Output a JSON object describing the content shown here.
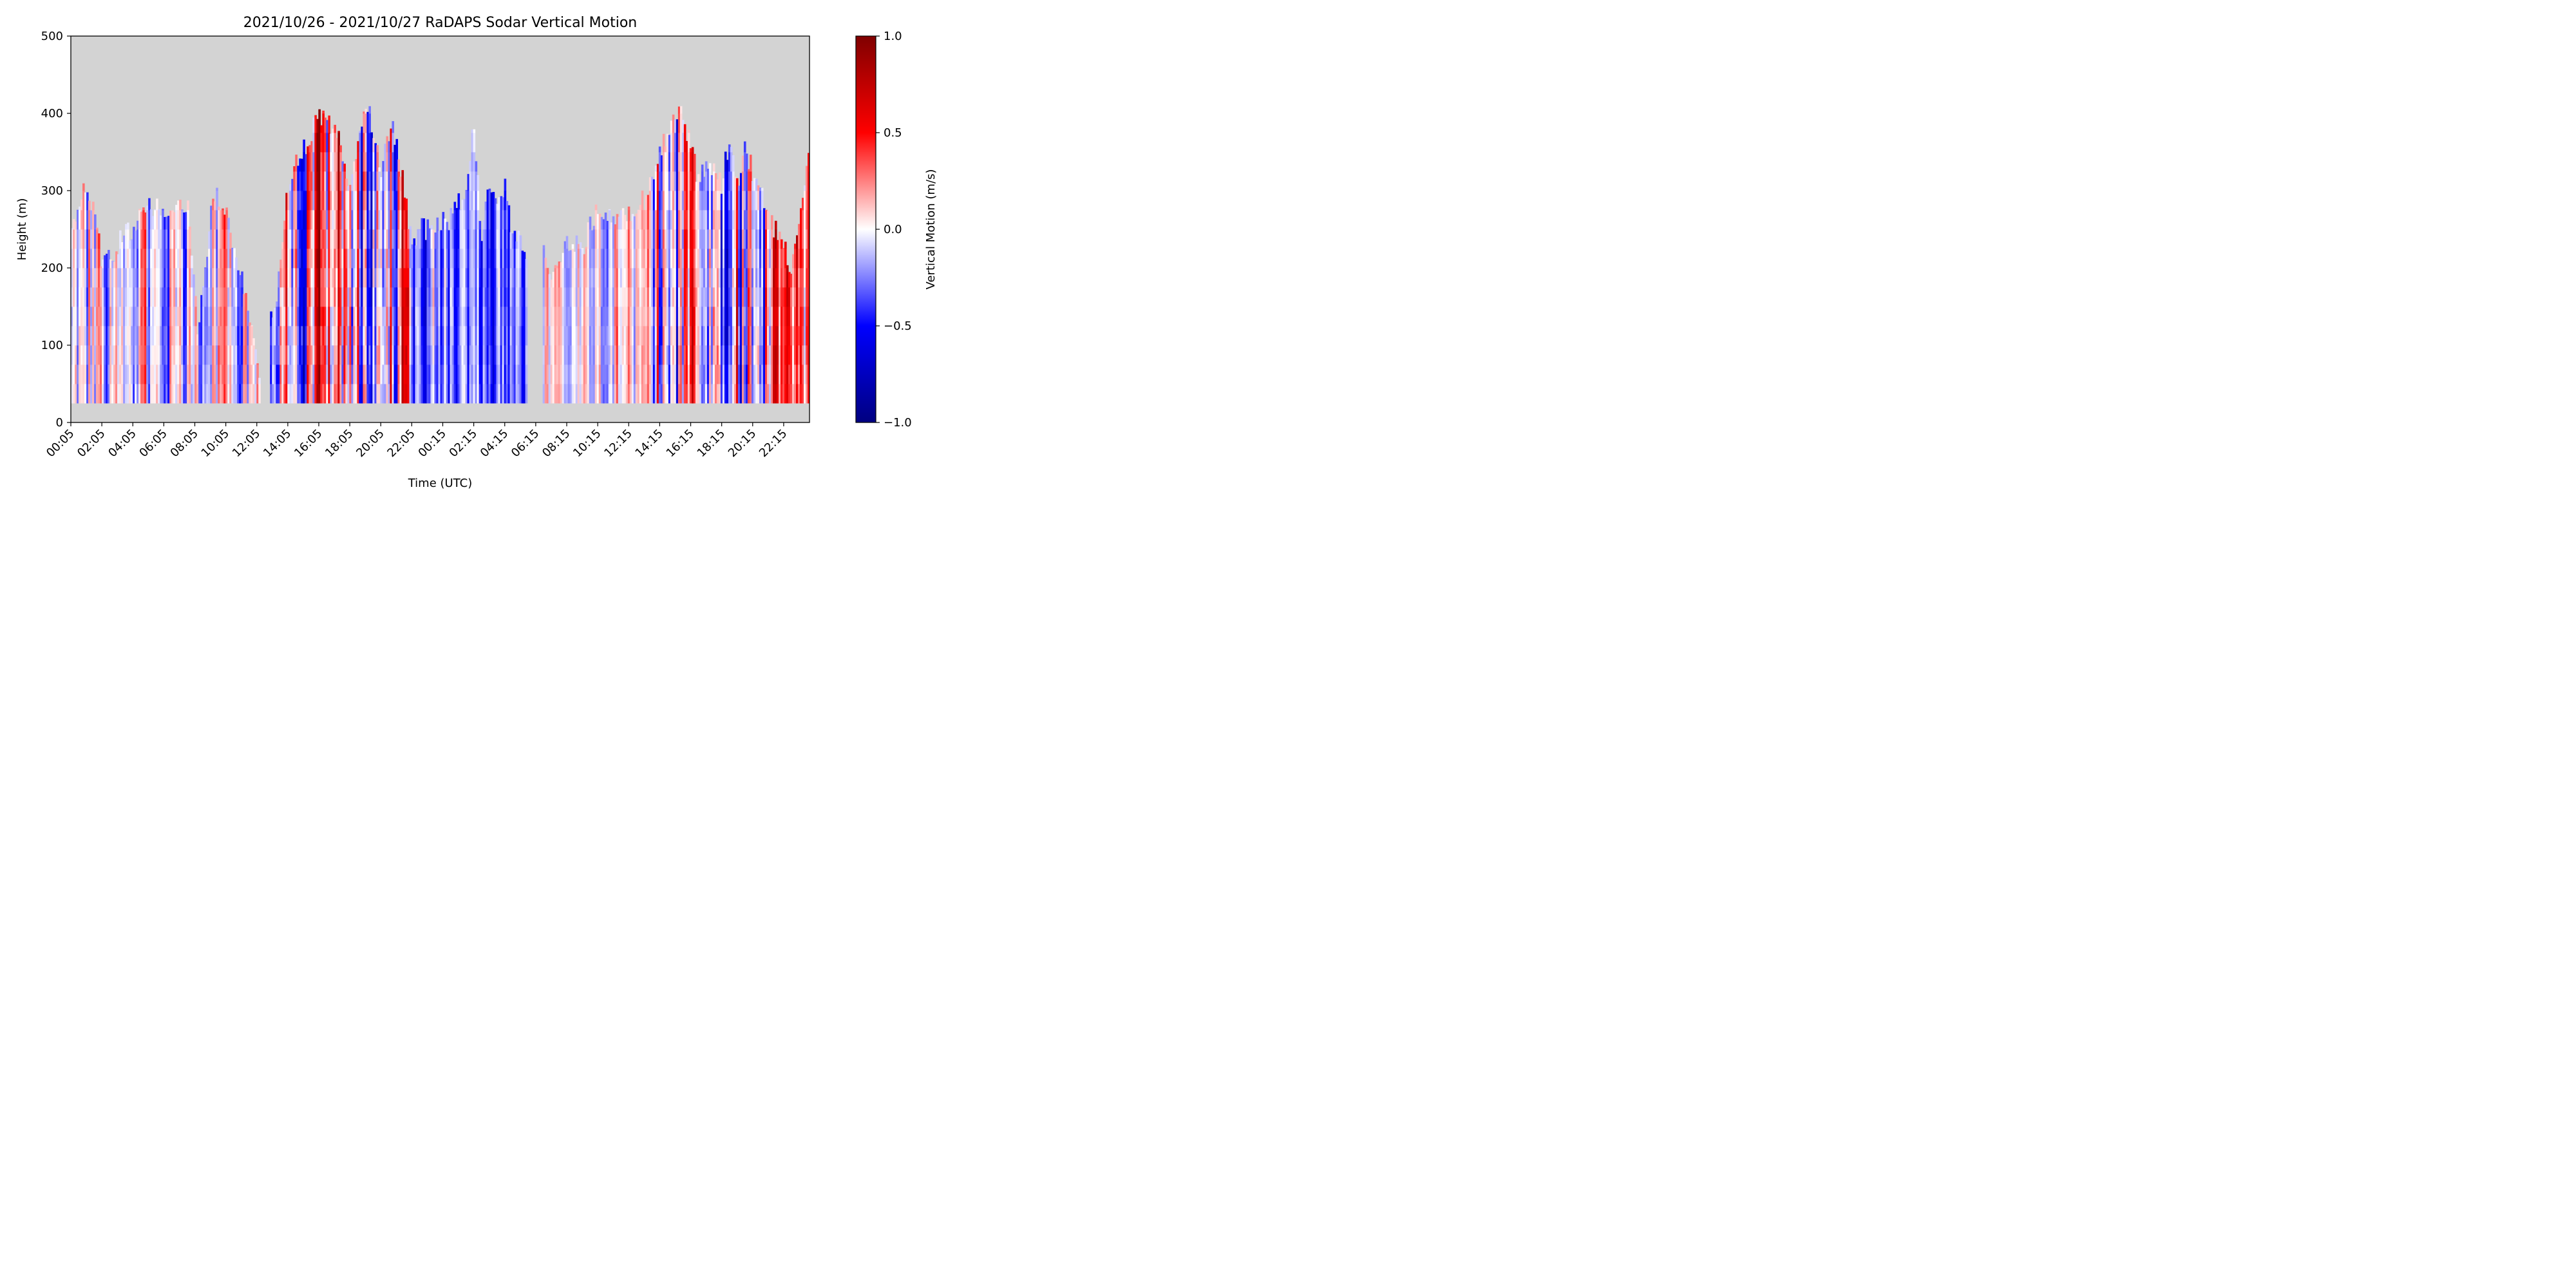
{
  "chart_data": {
    "type": "heatmap",
    "title": "2021/10/26 - 2021/10/27 RaDAPS Sodar Vertical Motion",
    "xlabel": "Time (UTC)",
    "ylabel": "Height (m)",
    "colorbar_label": "Vertical Motion (m/s)",
    "x_tick_labels": [
      "00:05",
      "02:05",
      "04:05",
      "06:05",
      "08:05",
      "10:05",
      "12:05",
      "14:05",
      "16:05",
      "18:05",
      "20:05",
      "22:05",
      "00:15",
      "02:15",
      "04:15",
      "06:15",
      "08:15",
      "10:15",
      "12:15",
      "14:15",
      "16:15",
      "18:15",
      "20:15",
      "22:15"
    ],
    "x_range_hours": [
      0,
      47.667
    ],
    "y_ticks": [
      0,
      100,
      200,
      300,
      400,
      500
    ],
    "ylim": [
      0,
      500
    ],
    "colorbar_ticks": [
      1.0,
      0.5,
      0.0,
      -0.5,
      -1.0
    ],
    "colorbar_tick_labels": [
      "1.0",
      "0.5",
      "0.0",
      "−0.5",
      "−1.0"
    ],
    "vlim": [
      -1.0,
      1.0
    ],
    "colormap": "seismic",
    "background_color": "#d3d3d3",
    "min_height_m": 25,
    "gap_periods_hours": [
      [
        12.25,
        12.9
      ],
      [
        29.5,
        30.4
      ]
    ],
    "profile_tops": [
      {
        "t": 0.0,
        "top": 265
      },
      {
        "t": 0.4,
        "top": 262
      },
      {
        "t": 0.8,
        "top": 305
      },
      {
        "t": 1.5,
        "top": 280
      },
      {
        "t": 2.0,
        "top": 200
      },
      {
        "t": 2.5,
        "top": 210
      },
      {
        "t": 3.0,
        "top": 230
      },
      {
        "t": 3.5,
        "top": 250
      },
      {
        "t": 4.2,
        "top": 240
      },
      {
        "t": 4.6,
        "top": 280
      },
      {
        "t": 5.3,
        "top": 280
      },
      {
        "t": 6.0,
        "top": 275
      },
      {
        "t": 6.8,
        "top": 280
      },
      {
        "t": 7.6,
        "top": 275
      },
      {
        "t": 8.2,
        "top": 120
      },
      {
        "t": 9.2,
        "top": 295
      },
      {
        "t": 10.0,
        "top": 275
      },
      {
        "t": 10.7,
        "top": 205
      },
      {
        "t": 11.4,
        "top": 160
      },
      {
        "t": 12.0,
        "top": 70
      },
      {
        "t": 12.25,
        "top": 70
      },
      {
        "t": 12.9,
        "top": 130
      },
      {
        "t": 13.4,
        "top": 180
      },
      {
        "t": 14.0,
        "top": 310
      },
      {
        "t": 15.0,
        "top": 355
      },
      {
        "t": 16.0,
        "top": 395
      },
      {
        "t": 17.0,
        "top": 385
      },
      {
        "t": 17.5,
        "top": 355
      },
      {
        "t": 18.0,
        "top": 300
      },
      {
        "t": 18.8,
        "top": 395
      },
      {
        "t": 19.3,
        "top": 400
      },
      {
        "t": 20.0,
        "top": 330
      },
      {
        "t": 20.8,
        "top": 385
      },
      {
        "t": 21.5,
        "top": 300
      },
      {
        "t": 22.0,
        "top": 230
      },
      {
        "t": 22.5,
        "top": 250
      },
      {
        "t": 23.5,
        "top": 250
      },
      {
        "t": 24.5,
        "top": 265
      },
      {
        "t": 25.5,
        "top": 300
      },
      {
        "t": 26.0,
        "top": 385
      },
      {
        "t": 26.5,
        "top": 245
      },
      {
        "t": 27.0,
        "top": 310
      },
      {
        "t": 27.5,
        "top": 275
      },
      {
        "t": 28.0,
        "top": 310
      },
      {
        "t": 28.5,
        "top": 245
      },
      {
        "t": 29.0,
        "top": 235
      },
      {
        "t": 29.5,
        "top": 220
      },
      {
        "t": 30.4,
        "top": 235
      },
      {
        "t": 31.0,
        "top": 190
      },
      {
        "t": 32.0,
        "top": 235
      },
      {
        "t": 33.0,
        "top": 225
      },
      {
        "t": 34.0,
        "top": 280
      },
      {
        "t": 35.0,
        "top": 265
      },
      {
        "t": 36.0,
        "top": 265
      },
      {
        "t": 37.0,
        "top": 290
      },
      {
        "t": 37.8,
        "top": 330
      },
      {
        "t": 38.5,
        "top": 375
      },
      {
        "t": 39.0,
        "top": 400
      },
      {
        "t": 39.5,
        "top": 400
      },
      {
        "t": 40.0,
        "top": 355
      },
      {
        "t": 40.5,
        "top": 310
      },
      {
        "t": 41.0,
        "top": 335
      },
      {
        "t": 41.5,
        "top": 325
      },
      {
        "t": 42.0,
        "top": 310
      },
      {
        "t": 42.5,
        "top": 370
      },
      {
        "t": 43.0,
        "top": 310
      },
      {
        "t": 43.5,
        "top": 355
      },
      {
        "t": 44.0,
        "top": 325
      },
      {
        "t": 44.5,
        "top": 305
      },
      {
        "t": 45.0,
        "top": 265
      },
      {
        "t": 45.5,
        "top": 250
      },
      {
        "t": 46.0,
        "top": 225
      },
      {
        "t": 46.5,
        "top": 200
      },
      {
        "t": 47.0,
        "top": 250
      },
      {
        "t": 47.667,
        "top": 370
      }
    ],
    "regimes": [
      {
        "t0": 0.0,
        "t1": 12.3,
        "bias": 0.0,
        "amp": 0.55
      },
      {
        "t0": 12.9,
        "t1": 22.0,
        "bias": 0.1,
        "amp": 0.95
      },
      {
        "t0": 22.0,
        "t1": 29.5,
        "bias": -0.3,
        "amp": 0.5
      },
      {
        "t0": 30.4,
        "t1": 34.0,
        "bias": 0.0,
        "amp": 0.35
      },
      {
        "t0": 34.0,
        "t1": 37.5,
        "bias": 0.05,
        "amp": 0.45
      },
      {
        "t0": 37.5,
        "t1": 47.667,
        "bias": 0.0,
        "amp": 0.8
      }
    ]
  }
}
